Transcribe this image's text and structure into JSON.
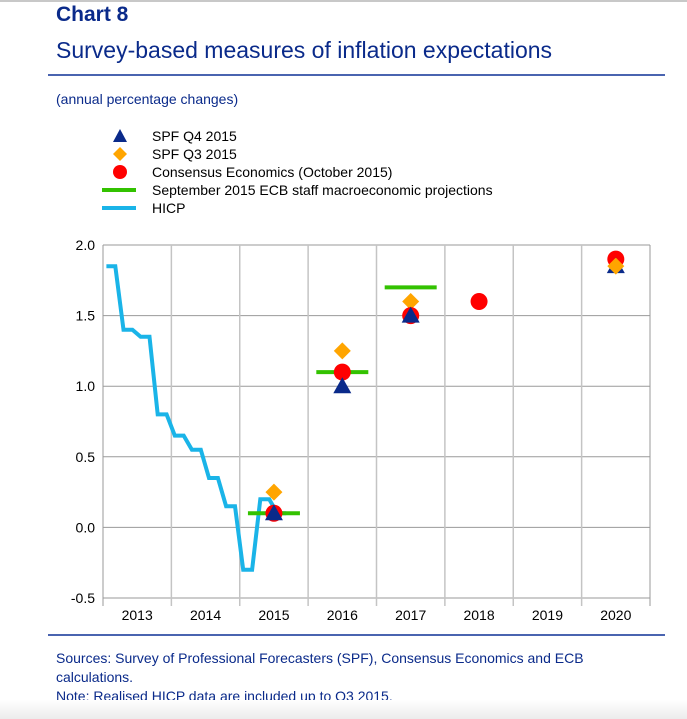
{
  "header": {
    "chart_label": "Chart 8",
    "title": "Survey-based measures of inflation expectations",
    "subtitle": "(annual percentage changes)"
  },
  "legend": [
    {
      "label": "SPF Q4 2015",
      "symbol": "triangle",
      "color": "#0a2a8a"
    },
    {
      "label": "SPF Q3 2015",
      "symbol": "diamond",
      "color": "#ffa500"
    },
    {
      "label": "Consensus Economics (October 2015)",
      "symbol": "circle",
      "color": "#ff0000"
    },
    {
      "label": "September 2015 ECB staff macroeconomic projections",
      "symbol": "line",
      "color": "#33c200"
    },
    {
      "label": "HICP",
      "symbol": "line",
      "color": "#1ab4e8"
    }
  ],
  "footnote": {
    "sources": "Sources: Survey of Professional Forecasters (SPF), Consensus Economics and ECB calculations.",
    "note": "Note: Realised HICP data are included up to Q3 2015."
  },
  "chart_data": {
    "type": "line",
    "title": "Survey-based measures of inflation expectations",
    "subtitle": "(annual percentage changes)",
    "xlabel": "",
    "ylabel": "",
    "categories": [
      "2013",
      "2014",
      "2015",
      "2016",
      "2017",
      "2018",
      "2019",
      "2020"
    ],
    "xlim": [
      2013,
      2021
    ],
    "ylim": [
      -0.5,
      2.0
    ],
    "yticks": [
      "2.0",
      "1.5",
      "1.0",
      "0.5",
      "0.0",
      "-0.5"
    ],
    "ytick_values": [
      2.0,
      1.5,
      1.0,
      0.5,
      0.0,
      -0.5
    ],
    "grid": true,
    "legend_position": "top-left",
    "series": [
      {
        "name": "HICP",
        "kind": "step-line",
        "color": "#1ab4e8",
        "points": [
          {
            "x": 2013.0,
            "y": 1.85
          },
          {
            "x": 2013.25,
            "y": 1.4
          },
          {
            "x": 2013.5,
            "y": 1.35
          },
          {
            "x": 2013.75,
            "y": 0.8
          },
          {
            "x": 2014.0,
            "y": 0.65
          },
          {
            "x": 2014.25,
            "y": 0.55
          },
          {
            "x": 2014.5,
            "y": 0.35
          },
          {
            "x": 2014.75,
            "y": 0.15
          },
          {
            "x": 2015.0,
            "y": -0.3
          },
          {
            "x": 2015.25,
            "y": 0.2
          },
          {
            "x": 2015.5,
            "y": 0.1
          }
        ]
      },
      {
        "name": "September 2015 ECB staff macroeconomic projections",
        "kind": "horizontal-bar",
        "color": "#33c200",
        "points": [
          {
            "category": "2015",
            "y": 0.1
          },
          {
            "category": "2016",
            "y": 1.1
          },
          {
            "category": "2017",
            "y": 1.7
          }
        ]
      },
      {
        "name": "Consensus Economics (October 2015)",
        "kind": "circle",
        "color": "#ff0000",
        "points": [
          {
            "category": "2015",
            "y": 0.1
          },
          {
            "category": "2016",
            "y": 1.1
          },
          {
            "category": "2017",
            "y": 1.5
          },
          {
            "category": "2018",
            "y": 1.6
          },
          {
            "category": "2020",
            "y": 1.9
          }
        ]
      },
      {
        "name": "SPF Q3 2015",
        "kind": "diamond",
        "color": "#ffa500",
        "points": [
          {
            "category": "2015",
            "y": 0.25
          },
          {
            "category": "2016",
            "y": 1.25
          },
          {
            "category": "2017",
            "y": 1.6
          },
          {
            "category": "2020",
            "y": 1.85
          }
        ]
      },
      {
        "name": "SPF Q4 2015",
        "kind": "triangle",
        "color": "#0a2a8a",
        "points": [
          {
            "category": "2015",
            "y": 0.1
          },
          {
            "category": "2016",
            "y": 1.0
          },
          {
            "category": "2017",
            "y": 1.5
          },
          {
            "category": "2020",
            "y": 1.85
          }
        ]
      }
    ]
  }
}
